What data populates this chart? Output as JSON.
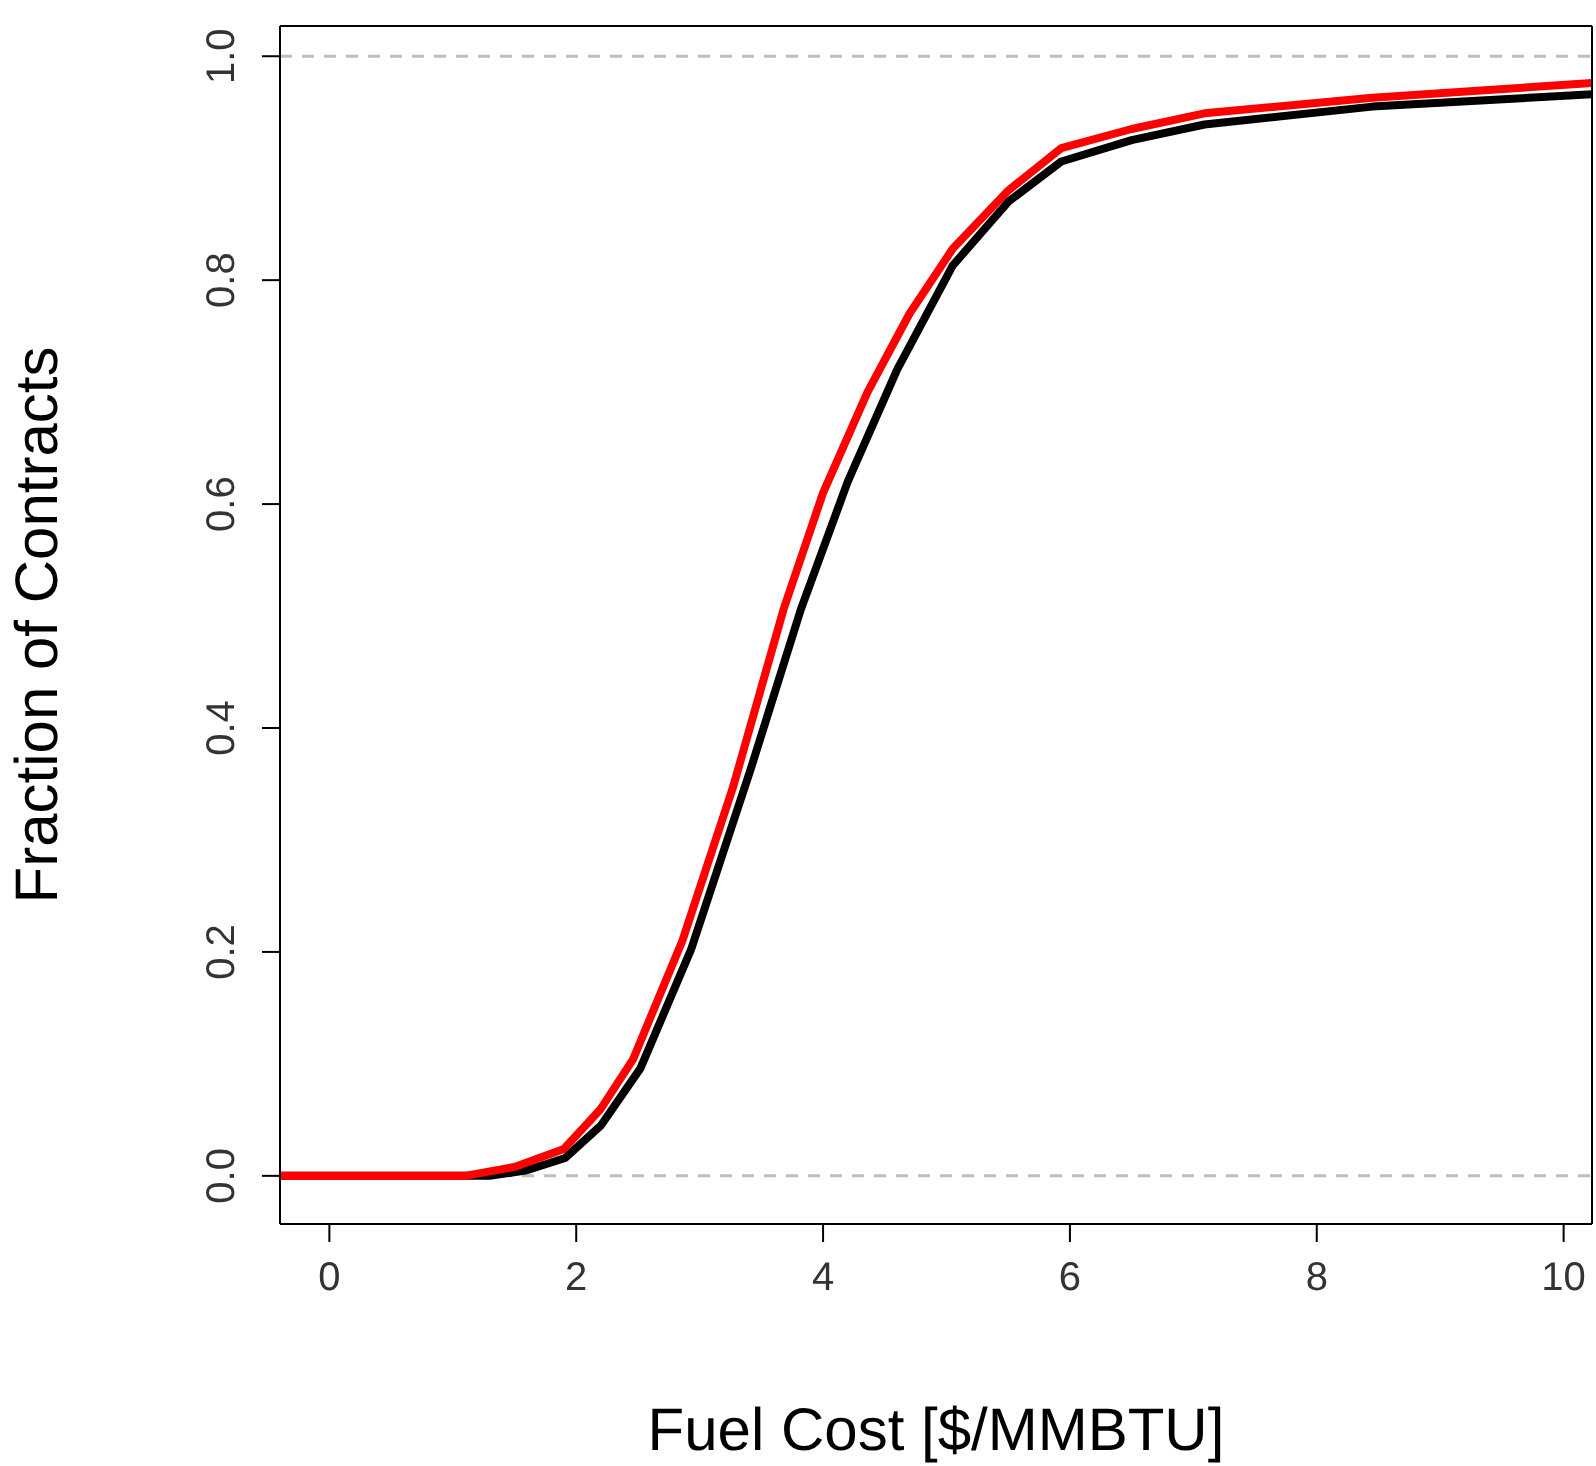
{
  "chart_data": {
    "type": "line",
    "xlabel": "Fuel Cost [$/MMBTU]",
    "ylabel": "Fraction of Contracts",
    "xlim": [
      -0.4,
      10.23
    ],
    "xticks": [
      0,
      2,
      4,
      6,
      8,
      10
    ],
    "ylim": [
      -0.043,
      1.027
    ],
    "yticks": [
      {
        "value": 0,
        "label": "0.0"
      },
      {
        "value": 0.2,
        "label": "0.2"
      },
      {
        "value": 0.4,
        "label": "0.4"
      },
      {
        "value": 0.6,
        "label": "0.6"
      },
      {
        "value": 0.8,
        "label": "0.8"
      },
      {
        "value": 1.0,
        "label": "1.0"
      }
    ],
    "grid": false,
    "line_style": "solid",
    "ref_lines": [
      {
        "axis": "y",
        "value": 0,
        "color": "#bebebe",
        "line_style": "dashed"
      },
      {
        "axis": "y",
        "value": 1,
        "color": "#bebebe",
        "line_style": "dashed"
      }
    ],
    "series": [
      {
        "color": "#000000",
        "x": [
          -0.4,
          1.3,
          1.6,
          1.91,
          2.2,
          2.52,
          2.93,
          3.41,
          3.82,
          4.2,
          4.6,
          5.05,
          5.5,
          5.93,
          6.5,
          7.09,
          8.45,
          10.23
        ],
        "values": [
          0,
          0,
          0.005,
          0.016,
          0.045,
          0.096,
          0.202,
          0.362,
          0.506,
          0.62,
          0.72,
          0.813,
          0.87,
          0.906,
          0.925,
          0.939,
          0.955,
          0.966
        ]
      },
      {
        "color": "#ff0000",
        "x": [
          -0.4,
          1.1,
          1.5,
          1.9,
          2.2,
          2.46,
          2.86,
          3.27,
          3.68,
          4.0,
          4.36,
          4.7,
          5.05,
          5.5,
          5.93,
          6.5,
          7.09,
          8.45,
          10.23
        ],
        "values": [
          0,
          0,
          0.008,
          0.024,
          0.06,
          0.104,
          0.21,
          0.347,
          0.506,
          0.61,
          0.7,
          0.77,
          0.828,
          0.88,
          0.918,
          0.935,
          0.949,
          0.963,
          0.976
        ]
      }
    ]
  }
}
